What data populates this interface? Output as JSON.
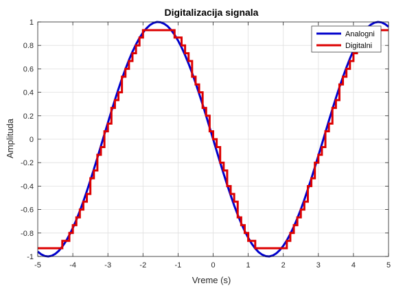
{
  "chart_data": {
    "type": "line",
    "title": "Digitalizacija signala",
    "xlabel": "Vreme (s)",
    "ylabel": "Amplituda",
    "xlim": [
      -5,
      5
    ],
    "ylim": [
      -1,
      1
    ],
    "x_ticks": [
      -5,
      -4,
      -3,
      -2,
      -1,
      0,
      1,
      2,
      3,
      4,
      5
    ],
    "y_ticks": [
      -1,
      -0.8,
      -0.6,
      -0.4,
      -0.2,
      0,
      0.2,
      0.4,
      0.6,
      0.8,
      1
    ],
    "grid": true,
    "legend_position": "top-right",
    "series": [
      {
        "name": "Analogni",
        "color": "#0000cc",
        "style": "continuous",
        "x": [
          -5,
          -4.9,
          -4.8,
          -4.7,
          -4.6,
          -4.5,
          -4.4,
          -4.3,
          -4.2,
          -4.1,
          -4,
          -3.9,
          -3.8,
          -3.7,
          -3.6,
          -3.5,
          -3.4,
          -3.3,
          -3.2,
          -3.1,
          -3,
          -2.9,
          -2.8,
          -2.7,
          -2.6,
          -2.5,
          -2.4,
          -2.3,
          -2.2,
          -2.1,
          -2,
          -1.9,
          -1.8,
          -1.7,
          -1.6,
          -1.5,
          -1.4,
          -1.3,
          -1.2,
          -1.1,
          -1,
          -0.9,
          -0.8,
          -0.7,
          -0.6,
          -0.5,
          -0.4,
          -0.3,
          -0.2,
          -0.1,
          0,
          0.1,
          0.2,
          0.3,
          0.4,
          0.5,
          0.6,
          0.7,
          0.8,
          0.9,
          1,
          1.1,
          1.2,
          1.3,
          1.4,
          1.5,
          1.6,
          1.7,
          1.8,
          1.9,
          2,
          2.1,
          2.2,
          2.3,
          2.4,
          2.5,
          2.6,
          2.7,
          2.8,
          2.9,
          3,
          3.1,
          3.2,
          3.3,
          3.4,
          3.5,
          3.6,
          3.7,
          3.8,
          3.9,
          4,
          4.1,
          4.2,
          4.3,
          4.4,
          4.5,
          4.6,
          4.7,
          4.8,
          4.9,
          5
        ],
        "y": [
          -0.959,
          -0.982,
          -0.996,
          -1.0,
          -0.994,
          -0.978,
          -0.952,
          -0.916,
          -0.872,
          -0.818,
          -0.757,
          -0.688,
          -0.612,
          -0.53,
          -0.443,
          -0.351,
          -0.256,
          -0.158,
          -0.058,
          0.042,
          0.141,
          0.239,
          0.335,
          0.427,
          0.516,
          0.598,
          0.675,
          0.746,
          0.808,
          0.863,
          0.909,
          0.946,
          0.974,
          0.992,
          1.0,
          0.997,
          0.985,
          0.964,
          0.932,
          0.891,
          0.841,
          0.783,
          0.717,
          0.644,
          0.565,
          0.479,
          0.389,
          0.296,
          0.199,
          0.1,
          0.0,
          -0.1,
          -0.199,
          -0.296,
          -0.389,
          -0.479,
          -0.565,
          -0.644,
          -0.717,
          -0.783,
          -0.841,
          -0.891,
          -0.932,
          -0.964,
          -0.985,
          -0.997,
          -1.0,
          -0.992,
          -0.974,
          -0.946,
          -0.909,
          -0.863,
          -0.808,
          -0.746,
          -0.675,
          -0.598,
          -0.516,
          -0.427,
          -0.335,
          -0.239,
          -0.141,
          -0.042,
          0.058,
          0.158,
          0.256,
          0.351,
          0.443,
          0.53,
          0.612,
          0.688,
          0.757,
          0.818,
          0.872,
          0.916,
          0.952,
          0.978,
          0.994,
          1.0,
          0.996,
          0.982,
          0.959
        ]
      },
      {
        "name": "Digitalni",
        "color": "#dd0000",
        "style": "stairs",
        "x": [
          -5,
          -4.9,
          -4.8,
          -4.7,
          -4.6,
          -4.5,
          -4.4,
          -4.3,
          -4.2,
          -4.1,
          -4,
          -3.9,
          -3.8,
          -3.7,
          -3.6,
          -3.5,
          -3.4,
          -3.3,
          -3.2,
          -3.1,
          -3,
          -2.9,
          -2.8,
          -2.7,
          -2.6,
          -2.5,
          -2.4,
          -2.3,
          -2.2,
          -2.1,
          -2,
          -1.9,
          -1.8,
          -1.7,
          -1.6,
          -1.5,
          -1.4,
          -1.3,
          -1.2,
          -1.1,
          -1,
          -0.9,
          -0.8,
          -0.7,
          -0.6,
          -0.5,
          -0.4,
          -0.3,
          -0.2,
          -0.1,
          0,
          0.1,
          0.2,
          0.3,
          0.4,
          0.5,
          0.6,
          0.7,
          0.8,
          0.9,
          1,
          1.1,
          1.2,
          1.3,
          1.4,
          1.5,
          1.6,
          1.7,
          1.8,
          1.9,
          2,
          2.1,
          2.2,
          2.3,
          2.4,
          2.5,
          2.6,
          2.7,
          2.8,
          2.9,
          3,
          3.1,
          3.2,
          3.3,
          3.4,
          3.5,
          3.6,
          3.7,
          3.8,
          3.9,
          4,
          4.1,
          4.2,
          4.3,
          4.4,
          4.5,
          4.6,
          4.7,
          4.8,
          4.9,
          5
        ],
        "y": [
          -0.93,
          -0.93,
          -0.93,
          -0.93,
          -0.93,
          -0.93,
          -0.93,
          -0.867,
          -0.867,
          -0.8,
          -0.733,
          -0.667,
          -0.6,
          -0.533,
          -0.467,
          -0.333,
          -0.267,
          -0.133,
          -0.067,
          0.067,
          0.133,
          0.267,
          0.333,
          0.4,
          0.533,
          0.6,
          0.667,
          0.733,
          0.8,
          0.867,
          0.93,
          0.93,
          0.93,
          0.93,
          0.93,
          0.93,
          0.93,
          0.93,
          0.93,
          0.867,
          0.867,
          0.8,
          0.733,
          0.667,
          0.533,
          0.467,
          0.4,
          0.267,
          0.2,
          0.067,
          0.0,
          -0.067,
          -0.2,
          -0.267,
          -0.4,
          -0.467,
          -0.533,
          -0.667,
          -0.733,
          -0.8,
          -0.867,
          -0.867,
          -0.93,
          -0.93,
          -0.93,
          -0.93,
          -0.93,
          -0.93,
          -0.93,
          -0.93,
          -0.93,
          -0.867,
          -0.8,
          -0.733,
          -0.667,
          -0.6,
          -0.533,
          -0.4,
          -0.333,
          -0.2,
          -0.133,
          -0.067,
          0.067,
          0.133,
          0.267,
          0.333,
          0.467,
          0.533,
          0.6,
          0.667,
          0.733,
          0.8,
          0.867,
          0.93,
          0.93,
          0.93,
          0.93,
          0.93,
          0.93,
          0.93,
          0.93
        ]
      }
    ]
  }
}
